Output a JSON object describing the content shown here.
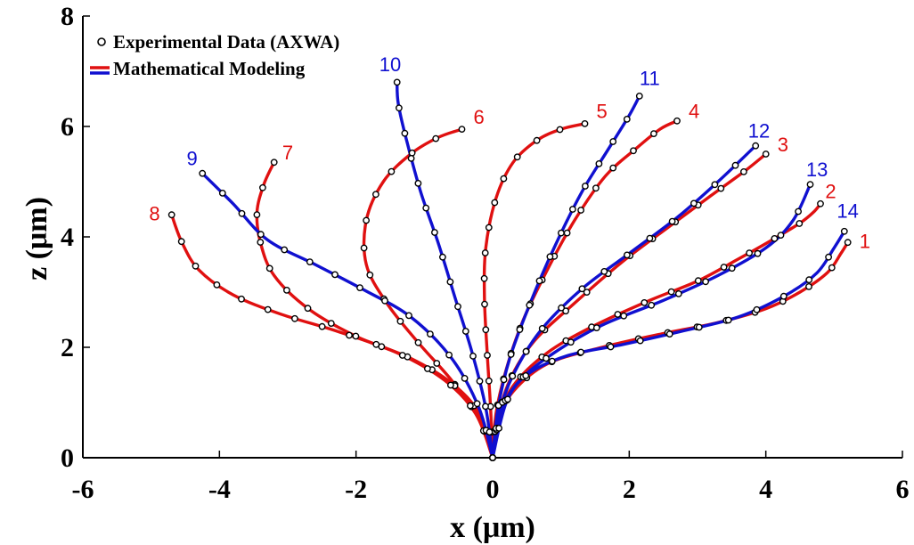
{
  "chart_data": {
    "type": "line",
    "xlabel": "x (μm)",
    "ylabel": "z (μm)",
    "xlim": [
      -6,
      6
    ],
    "ylim": [
      0,
      8
    ],
    "xticks": [
      -6,
      -4,
      -2,
      0,
      2,
      4,
      6
    ],
    "yticks": [
      0,
      2,
      4,
      6,
      8
    ],
    "xtick_labels": [
      "-6",
      "-4",
      "-2",
      "0",
      "2",
      "4",
      "6"
    ],
    "ytick_labels": [
      "0",
      "2",
      "4",
      "6",
      "8"
    ],
    "grid": false,
    "legend": {
      "placement": "top-left",
      "entries": [
        {
          "label": "Experimental Data (AXWA)",
          "marker": "open-circle",
          "color": "#000000"
        },
        {
          "label": "Mathematical Modeling",
          "colors": [
            "#e01010",
            "#1010d0"
          ]
        }
      ]
    },
    "series": [
      {
        "name": "1",
        "color": "#e01010",
        "label_at": [
          5.45,
          3.8
        ],
        "x": [
          0,
          0.1,
          0.3,
          0.8,
          1.6,
          2.5,
          3.3,
          4.0,
          4.5,
          4.9,
          5.1,
          5.2
        ],
        "y": [
          0,
          0.7,
          1.2,
          1.7,
          2.0,
          2.25,
          2.45,
          2.7,
          3.0,
          3.35,
          3.7,
          3.9
        ]
      },
      {
        "name": "2",
        "color": "#e01010",
        "label_at": [
          4.95,
          4.7
        ],
        "x": [
          0,
          0.1,
          0.3,
          0.8,
          1.5,
          2.3,
          3.0,
          3.6,
          4.1,
          4.5,
          4.7,
          4.8
        ],
        "y": [
          0,
          0.7,
          1.3,
          1.9,
          2.4,
          2.85,
          3.2,
          3.6,
          3.95,
          4.25,
          4.45,
          4.6
        ]
      },
      {
        "name": "3",
        "color": "#e01010",
        "label_at": [
          4.25,
          5.55
        ],
        "x": [
          0,
          0.08,
          0.25,
          0.6,
          1.2,
          1.9,
          2.6,
          3.2,
          3.7,
          4.0
        ],
        "y": [
          0,
          0.7,
          1.4,
          2.1,
          2.8,
          3.55,
          4.2,
          4.75,
          5.2,
          5.5
        ]
      },
      {
        "name": "4",
        "color": "#e01010",
        "label_at": [
          2.95,
          6.15
        ],
        "x": [
          0,
          0.05,
          0.2,
          0.45,
          0.8,
          1.2,
          1.65,
          2.1,
          2.45,
          2.7
        ],
        "y": [
          0,
          0.8,
          1.6,
          2.5,
          3.4,
          4.3,
          5.1,
          5.6,
          5.95,
          6.1
        ]
      },
      {
        "name": "5",
        "color": "#e01010",
        "label_at": [
          1.6,
          6.15
        ],
        "x": [
          0,
          -0.03,
          -0.08,
          -0.12,
          -0.1,
          0.05,
          0.3,
          0.65,
          1.0,
          1.35
        ],
        "y": [
          0,
          0.9,
          1.9,
          2.9,
          3.8,
          4.7,
          5.35,
          5.75,
          5.95,
          6.05
        ]
      },
      {
        "name": "6",
        "color": "#e01010",
        "label_at": [
          -0.2,
          6.05
        ],
        "x": [
          0,
          -0.2,
          -0.6,
          -1.1,
          -1.55,
          -1.85,
          -1.85,
          -1.6,
          -1.2,
          -0.8,
          -0.45
        ],
        "y": [
          0,
          0.7,
          1.4,
          2.1,
          2.8,
          3.5,
          4.3,
          5.0,
          5.5,
          5.8,
          5.95
        ]
      },
      {
        "name": "7",
        "color": "#e01010",
        "label_at": [
          -3.0,
          5.4
        ],
        "x": [
          0,
          -0.2,
          -0.6,
          -1.2,
          -2.0,
          -2.7,
          -3.2,
          -3.4,
          -3.45,
          -3.35,
          -3.2
        ],
        "y": [
          0,
          0.8,
          1.35,
          1.8,
          2.2,
          2.7,
          3.3,
          3.9,
          4.45,
          4.95,
          5.35
        ]
      },
      {
        "name": "8",
        "color": "#e01010",
        "label_at": [
          -4.95,
          4.3
        ],
        "x": [
          0,
          -0.25,
          -0.7,
          -1.4,
          -2.3,
          -3.1,
          -3.8,
          -4.3,
          -4.55,
          -4.7
        ],
        "y": [
          0,
          0.8,
          1.4,
          1.9,
          2.3,
          2.6,
          2.95,
          3.4,
          3.9,
          4.4
        ]
      },
      {
        "name": "9",
        "color": "#1010d0",
        "label_at": [
          -4.4,
          5.3
        ],
        "x": [
          0,
          -0.2,
          -0.6,
          -1.2,
          -1.9,
          -2.6,
          -3.3,
          -3.8,
          -4.25
        ],
        "y": [
          0,
          0.9,
          1.8,
          2.55,
          3.05,
          3.5,
          3.95,
          4.6,
          5.15
        ]
      },
      {
        "name": "10",
        "color": "#1010d0",
        "label_at": [
          -1.5,
          7.0
        ],
        "x": [
          0,
          -0.1,
          -0.3,
          -0.55,
          -0.8,
          -1.05,
          -1.25,
          -1.38,
          -1.4
        ],
        "y": [
          0,
          0.9,
          1.9,
          2.9,
          3.9,
          4.8,
          5.7,
          6.4,
          6.8
        ]
      },
      {
        "name": "11",
        "color": "#1010d0",
        "label_at": [
          2.3,
          6.75
        ],
        "x": [
          0,
          0.08,
          0.25,
          0.55,
          0.9,
          1.3,
          1.7,
          2.0,
          2.15
        ],
        "y": [
          0,
          0.9,
          1.8,
          2.8,
          3.8,
          4.8,
          5.6,
          6.2,
          6.55
        ]
      },
      {
        "name": "12",
        "color": "#1010d0",
        "label_at": [
          3.9,
          5.8
        ],
        "x": [
          0,
          0.1,
          0.3,
          0.7,
          1.3,
          2.0,
          2.7,
          3.3,
          3.85
        ],
        "y": [
          0,
          0.8,
          1.5,
          2.3,
          3.05,
          3.7,
          4.35,
          5.0,
          5.65
        ]
      },
      {
        "name": "13",
        "color": "#1010d0",
        "label_at": [
          4.75,
          5.1
        ],
        "x": [
          0,
          0.1,
          0.4,
          0.9,
          1.6,
          2.5,
          3.3,
          4.0,
          4.4,
          4.65
        ],
        "y": [
          0,
          0.8,
          1.4,
          1.9,
          2.4,
          2.85,
          3.3,
          3.8,
          4.3,
          4.95
        ]
      },
      {
        "name": "14",
        "color": "#1010d0",
        "label_at": [
          5.2,
          4.35
        ],
        "x": [
          0,
          0.2,
          0.5,
          1.1,
          1.9,
          2.8,
          3.6,
          4.3,
          4.75,
          5.0,
          5.15
        ],
        "y": [
          0,
          1.0,
          1.5,
          1.85,
          2.05,
          2.3,
          2.55,
          2.95,
          3.35,
          3.8,
          4.1
        ]
      }
    ]
  }
}
